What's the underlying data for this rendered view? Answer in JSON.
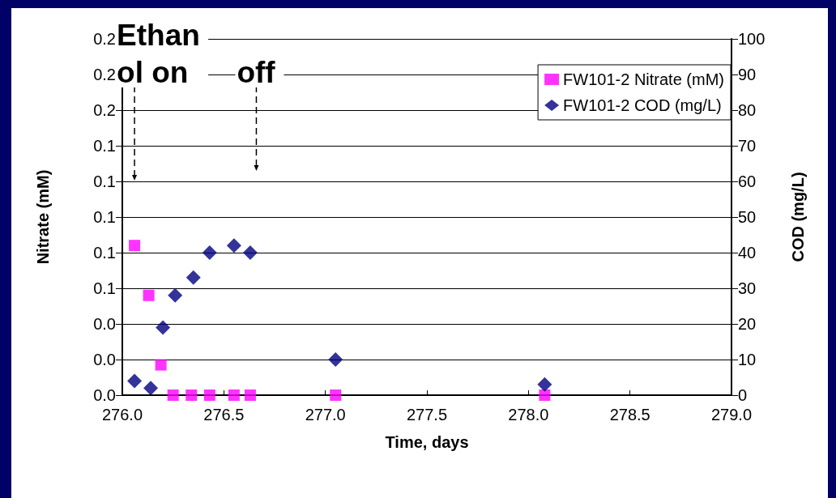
{
  "chart_data": {
    "type": "scatter",
    "xlabel": "Time, days",
    "ylabel": "Nitrate (mM)",
    "y2label": "COD (mg/L)",
    "xlim": [
      276,
      279
    ],
    "xticks": [
      {
        "value": 276,
        "label": "276.0"
      },
      {
        "value": 276.5,
        "label": "276.5"
      },
      {
        "value": 277,
        "label": "277.0"
      },
      {
        "value": 277.5,
        "label": "277.5"
      },
      {
        "value": 278,
        "label": "278.0"
      },
      {
        "value": 278.5,
        "label": "278.5"
      },
      {
        "value": 279,
        "label": "279.0"
      }
    ],
    "ylim": [
      0,
      0.2
    ],
    "yticks": [
      {
        "value": 0,
        "label": "0.0"
      },
      {
        "value": 0.02,
        "label": "0.0"
      },
      {
        "value": 0.04,
        "label": "0.0"
      },
      {
        "value": 0.06,
        "label": "0.1"
      },
      {
        "value": 0.08,
        "label": "0.1"
      },
      {
        "value": 0.1,
        "label": "0.1"
      },
      {
        "value": 0.12,
        "label": "0.1"
      },
      {
        "value": 0.14,
        "label": "0.1"
      },
      {
        "value": 0.16,
        "label": "0.2"
      },
      {
        "value": 0.18,
        "label": "0.2"
      },
      {
        "value": 0.2,
        "label": "0.2"
      }
    ],
    "y2lim": [
      0,
      100
    ],
    "y2ticks": [
      0,
      10,
      20,
      30,
      40,
      50,
      60,
      70,
      80,
      90,
      100
    ],
    "grid": "y",
    "legend": "top right",
    "series": [
      {
        "name": "FW101-2 Nitrate (mM)",
        "color": "#ff00ff",
        "marker": "square",
        "x": [
          276.06,
          276.13,
          276.19,
          276.25,
          276.34,
          276.43,
          276.55,
          276.63,
          277.05,
          278.08
        ],
        "values": [
          0.084,
          0.056,
          0.017,
          0,
          0,
          0,
          0,
          0,
          0,
          0
        ]
      },
      {
        "name": "FW101-2 COD (mg/L)",
        "color": "#000080",
        "marker": "diamond",
        "axis": "y2",
        "x": [
          276.06,
          276.14,
          276.2,
          276.26,
          276.35,
          276.43,
          276.55,
          276.63,
          277.05,
          278.08
        ],
        "values": [
          4,
          2,
          19,
          28,
          33,
          40,
          42,
          40,
          10,
          3
        ]
      }
    ],
    "annotations": [
      "Ethanol on",
      "off"
    ]
  }
}
